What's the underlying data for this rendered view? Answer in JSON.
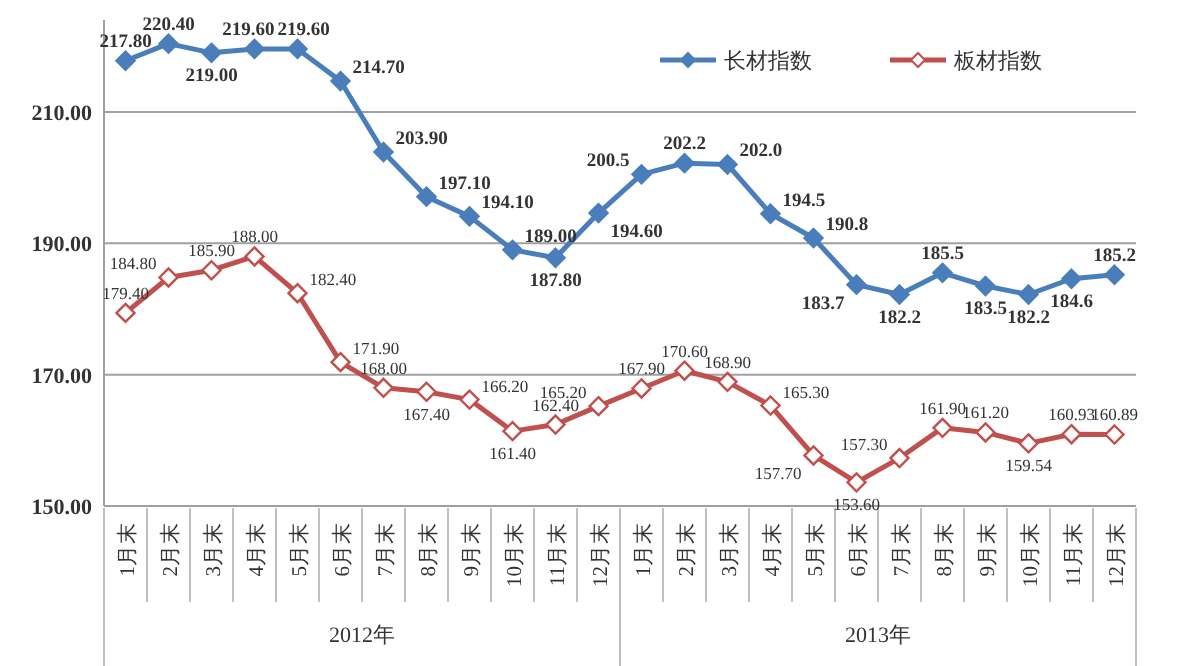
{
  "chart_data": {
    "type": "line",
    "categories": [
      "1月末",
      "2月末",
      "3月末",
      "4月末",
      "5月末",
      "6月末",
      "7月末",
      "8月末",
      "9月末",
      "10月末",
      "11月末",
      "12月末",
      "1月末",
      "2月末",
      "3月末",
      "4月末",
      "5月末",
      "6月末",
      "7月末",
      "8月末",
      "9月末",
      "10月末",
      "11月末",
      "12月末"
    ],
    "annotations": [
      "2012年",
      "2013年"
    ],
    "series": [
      {
        "name": "长材指数",
        "color": "#4a7ebb",
        "values": [
          217.8,
          220.4,
          219.0,
          219.6,
          219.6,
          214.7,
          203.9,
          197.1,
          194.1,
          189.0,
          187.8,
          194.6,
          200.5,
          202.2,
          202.0,
          194.5,
          190.8,
          183.7,
          182.2,
          185.5,
          183.5,
          182.2,
          184.6,
          185.2
        ],
        "value_labels": [
          "217.80",
          "220.40",
          "219.00",
          "219.60",
          "219.60",
          "214.70",
          "203.90",
          "197.10",
          "194.10",
          "189.00",
          "187.80",
          "194.60",
          "200.5",
          "202.2",
          "202.0",
          "194.5",
          "190.8",
          "183.7",
          "182.2",
          "185.5",
          "183.5",
          "182.2",
          "184.6",
          "185.2"
        ]
      },
      {
        "name": "板材指数",
        "color": "#c0504d",
        "values": [
          179.4,
          184.8,
          185.9,
          188.0,
          182.4,
          171.9,
          168.0,
          167.4,
          166.2,
          161.4,
          162.4,
          165.2,
          167.9,
          170.6,
          168.9,
          165.3,
          157.7,
          153.6,
          157.3,
          161.9,
          161.2,
          159.54,
          160.93,
          160.89
        ],
        "value_labels": [
          "179.40",
          "184.80",
          "185.90",
          "188.00",
          "182.40",
          "171.90",
          "168.00",
          "167.40",
          "166.20",
          "161.40",
          "162.40",
          "165.20",
          "167.90",
          "170.60",
          "168.90",
          "165.30",
          "157.70",
          "153.60",
          "157.30",
          "161.90",
          "161.20",
          "159.54",
          "160.93",
          "160.89"
        ]
      }
    ],
    "ylim": [
      150,
      224
    ],
    "yticks": [
      {
        "value": 150,
        "label": "150.00"
      },
      {
        "value": 170,
        "label": "170.00"
      },
      {
        "value": 190,
        "label": "190.00"
      },
      {
        "value": 210,
        "label": "210.00"
      }
    ],
    "grid": "y",
    "legend": "top right",
    "marker": "diamond"
  }
}
